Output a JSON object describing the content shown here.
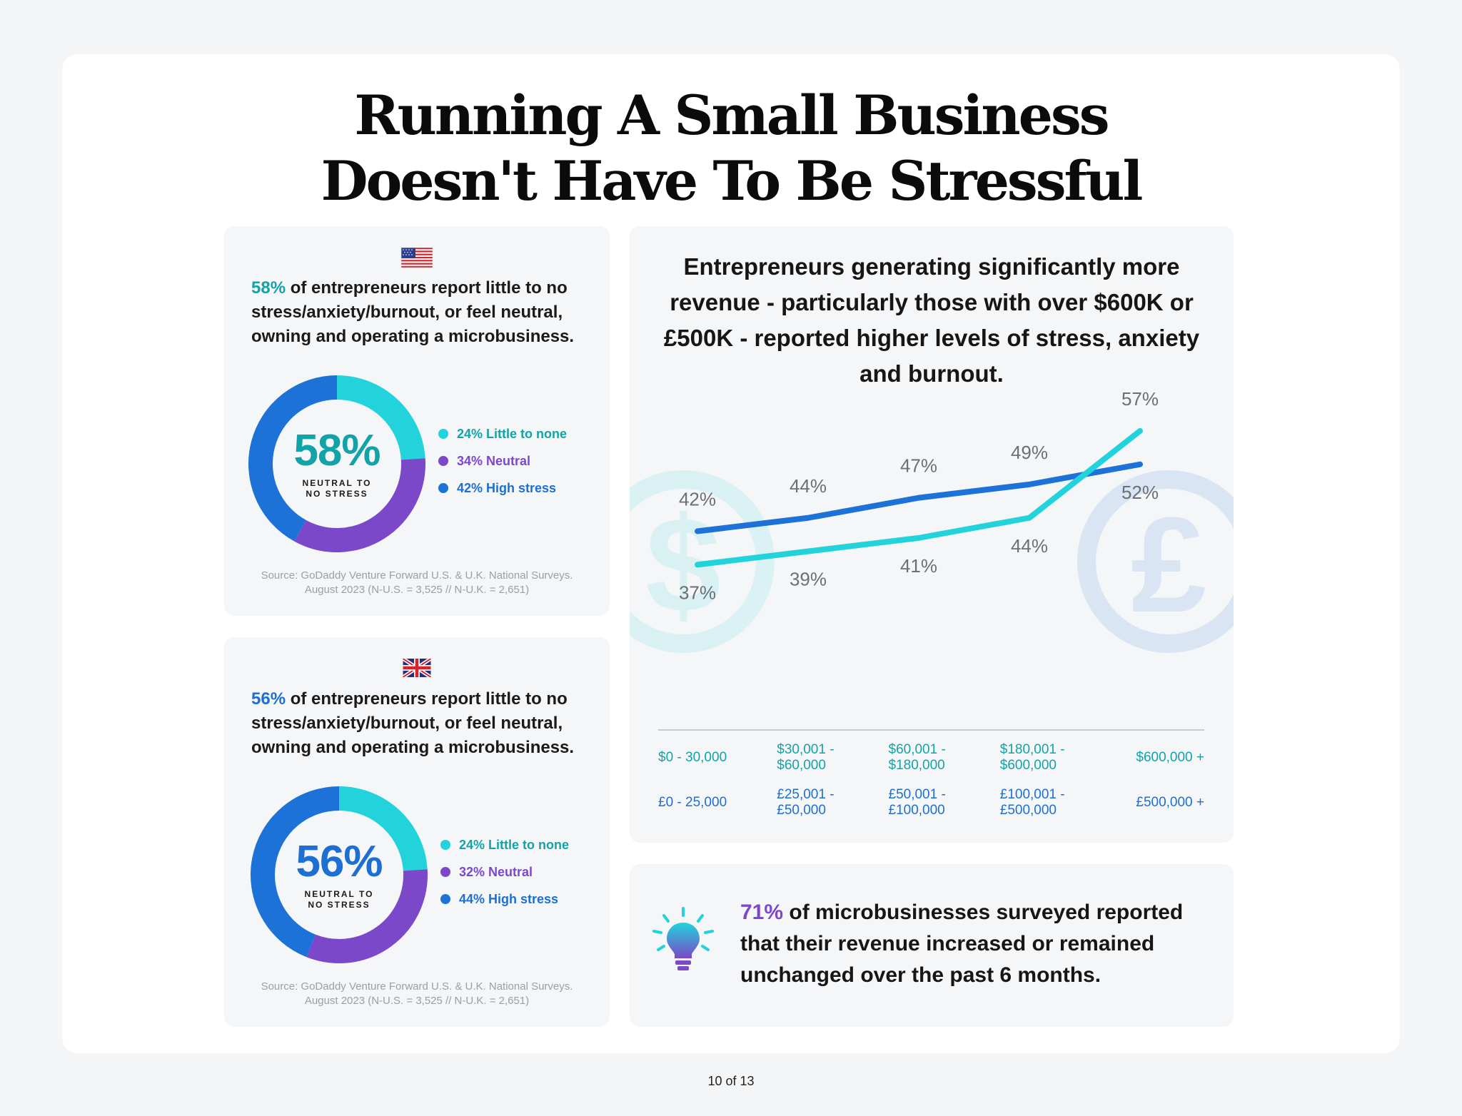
{
  "title": {
    "line1": "Running A Small Business",
    "line2": "Doesn't Have To Be Stressful"
  },
  "us_panel": {
    "flag_icon": "us-flag-icon",
    "headline_pct": "58%",
    "headline_rest": " of entrepreneurs report little to no stress/anxiety/burnout, or feel neutral, owning and operating a microbusiness.",
    "donut": {
      "center_value": "58%",
      "center_label": "NEUTRAL TO NO STRESS",
      "segments": [
        {
          "label": "24% Little to none",
          "value": 24,
          "color": "#22d3dc"
        },
        {
          "label": "34% Neutral",
          "value": 34,
          "color": "#7a48c8"
        },
        {
          "label": "42% High stress",
          "value": 42,
          "color": "#1d72d8"
        }
      ]
    },
    "source_line1": "Source: GoDaddy Venture Forward U.S. & U.K. National Surveys.",
    "source_line2": "August 2023 (N-U.S. = 3,525 // N-U.K. = 2,651)"
  },
  "uk_panel": {
    "flag_icon": "uk-flag-icon",
    "headline_pct": "56%",
    "headline_rest": " of entrepreneurs report little to no stress/anxiety/burnout, or feel neutral, owning and operating a microbusiness.",
    "donut": {
      "center_value": "56%",
      "center_label": "NEUTRAL TO NO STRESS",
      "segments": [
        {
          "label": "24% Little to none",
          "value": 24,
          "color": "#22d3dc"
        },
        {
          "label": "32% Neutral",
          "value": 32,
          "color": "#7a48c8"
        },
        {
          "label": "44% High stress",
          "value": 44,
          "color": "#1d72d8"
        }
      ]
    },
    "source_line1": "Source: GoDaddy Venture Forward U.S. & U.K. National Surveys.",
    "source_line2": "August 2023 (N-U.S. = 3,525 // N-U.K. = 2,651)"
  },
  "chart_panel": {
    "title": "Entrepreneurs generating significantly more revenue - particularly those with over $600K or £500K - reported higher levels of stress, anxiety and burnout.",
    "bg_icons": [
      "dollar-icon",
      "pound-icon"
    ]
  },
  "chart_data": {
    "type": "line",
    "categories_us": [
      "$0 - 30,000",
      "$30,001 - $60,000",
      "$60,001 - $180,000",
      "$180,001 - $600,000",
      "$600,000 +"
    ],
    "categories_uk": [
      "£0 - 25,000",
      "£25,001 - £50,000",
      "£50,001 - £100,000",
      "£100,001 - £500,000",
      "£500,000 +"
    ],
    "ylim": [
      30,
      62
    ],
    "series": [
      {
        "values": [
          42,
          44,
          47,
          49,
          52
        ],
        "labels": [
          "42%",
          "44%",
          "47%",
          "49%",
          "52%"
        ],
        "color": "#1d72d8"
      },
      {
        "values": [
          37,
          39,
          41,
          44,
          57
        ],
        "labels": [
          "37%",
          "39%",
          "41%",
          "44%",
          "57%"
        ],
        "color": "#22d3dc"
      }
    ],
    "axis_colors": {
      "us": "#12a3a8",
      "uk": "#1d6fd1"
    }
  },
  "insight": {
    "icon": "lightbulb-icon",
    "pct": "71%",
    "rest": " of microbusinesses surveyed reported that their revenue increased or remained unchanged over the past 6 months."
  },
  "footer": {
    "page": "10 of 13"
  }
}
